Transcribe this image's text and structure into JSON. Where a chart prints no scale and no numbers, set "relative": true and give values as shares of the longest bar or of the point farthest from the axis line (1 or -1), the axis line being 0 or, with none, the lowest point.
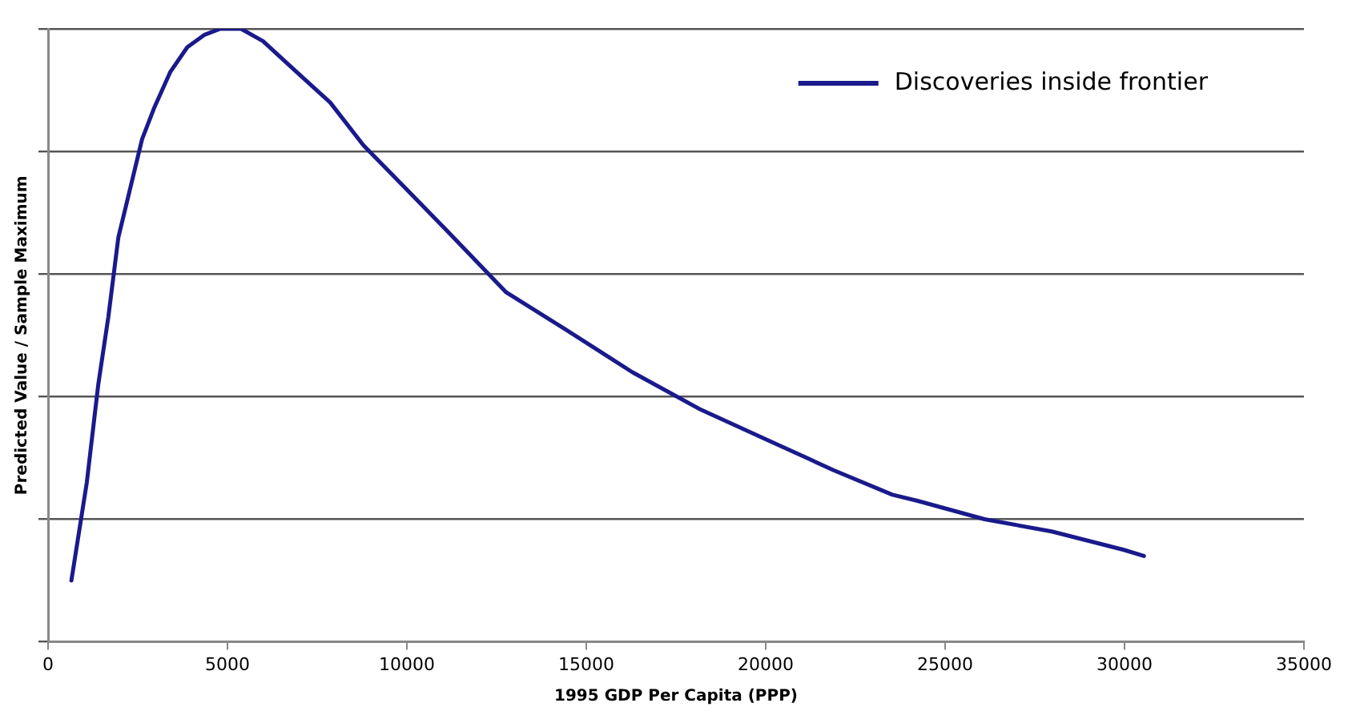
{
  "chart_data": {
    "type": "line",
    "relative": true,
    "xlabel": "1995 GDP Per Capita (PPP)",
    "ylabel": "Predicted Value / Sample Maximum",
    "xlim": [
      0,
      35000
    ],
    "xticks": [
      0,
      5000,
      10000,
      15000,
      20000,
      25000,
      30000,
      35000
    ],
    "grid": "y",
    "legend": "top right",
    "marker": "none",
    "line_style": "solid",
    "series": [
      {
        "name": "Discoveries inside frontier",
        "color": "#1a1a8c",
        "x": [
          650,
          1080,
          1400,
          1680,
          1960,
          2250,
          2620,
          2950,
          3410,
          3880,
          4350,
          4800,
          5380,
          5990,
          6920,
          7860,
          8790,
          9960,
          11130,
          12770,
          14410,
          16280,
          18150,
          20020,
          21890,
          23530,
          24230,
          26100,
          27970,
          29980,
          30540
        ],
        "values": [
          0.1,
          0.26,
          0.42,
          0.53,
          0.66,
          0.73,
          0.82,
          0.87,
          0.93,
          0.97,
          0.99,
          1.0,
          1.0,
          0.98,
          0.93,
          0.88,
          0.81,
          0.74,
          0.67,
          0.57,
          0.51,
          0.44,
          0.38,
          0.33,
          0.28,
          0.24,
          0.23,
          0.2,
          0.18,
          0.15,
          0.14
        ]
      }
    ]
  }
}
